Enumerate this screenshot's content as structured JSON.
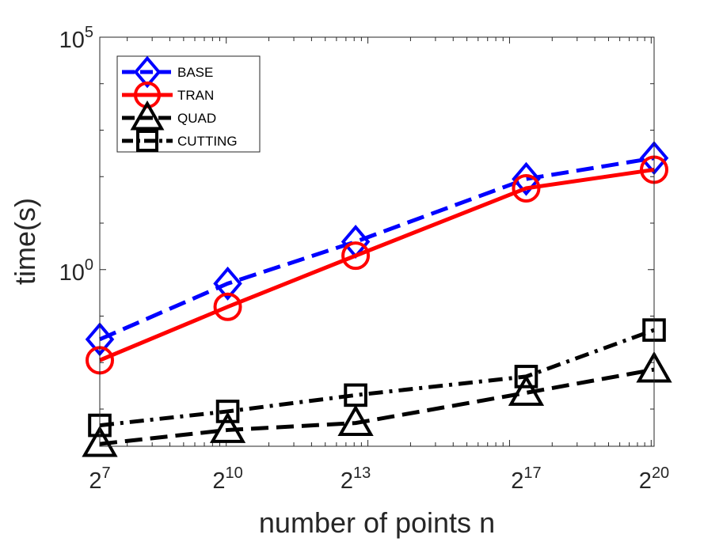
{
  "chart_data": {
    "type": "line",
    "title": "",
    "xlabel": "number of points n",
    "ylabel": "time(s)",
    "x_scale": "log2",
    "y_scale": "log10",
    "x_ticks": [
      {
        "base": "2",
        "exp": "7",
        "value": 7
      },
      {
        "base": "2",
        "exp": "10",
        "value": 10
      },
      {
        "base": "2",
        "exp": "13",
        "value": 13
      },
      {
        "base": "2",
        "exp": "17",
        "value": 17
      },
      {
        "base": "2",
        "exp": "20",
        "value": 20
      }
    ],
    "y_ticks": [
      {
        "base": "10",
        "exp": "0",
        "value": 0
      },
      {
        "base": "10",
        "exp": "5",
        "value": 5
      }
    ],
    "xlim": [
      7,
      20
    ],
    "ylim": [
      -3.8,
      5
    ],
    "legend_position": "top-left",
    "grid": false,
    "series": [
      {
        "name": "BASE",
        "color": "#0000ff",
        "dash": "dashed",
        "marker": "diamond",
        "x": [
          7,
          10,
          13,
          17,
          20
        ],
        "y": [
          -1.5,
          -0.3,
          0.6,
          1.95,
          2.4
        ]
      },
      {
        "name": "TRAN",
        "color": "#ff0000",
        "dash": "solid",
        "marker": "circle",
        "x": [
          7,
          10,
          13,
          17,
          20
        ],
        "y": [
          -1.95,
          -0.8,
          0.3,
          1.75,
          2.15
        ]
      },
      {
        "name": "QUAD",
        "color": "#000000",
        "dash": "dashed",
        "marker": "triangle",
        "x": [
          7,
          10,
          13,
          17,
          20
        ],
        "y": [
          -3.75,
          -3.45,
          -3.3,
          -2.65,
          -2.15
        ]
      },
      {
        "name": "CUTTING",
        "color": "#000000",
        "dash": "dashdot",
        "marker": "square",
        "x": [
          7,
          10,
          13,
          17,
          20
        ],
        "y": [
          -3.35,
          -3.05,
          -2.7,
          -2.3,
          -1.3
        ]
      }
    ]
  }
}
